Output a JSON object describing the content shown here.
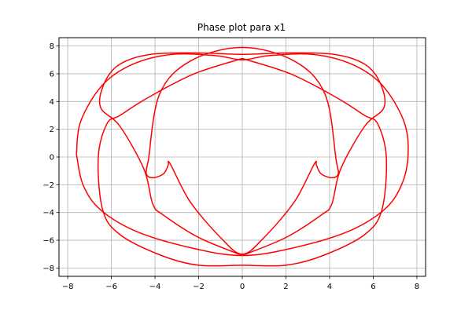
{
  "chart_data": {
    "type": "line",
    "title": "Phase plot para x1",
    "xlabel": "",
    "ylabel": "",
    "xlim": [
      -8.4,
      8.4
    ],
    "ylim": [
      -8.6,
      8.6
    ],
    "xticks": [
      -8,
      -6,
      -4,
      -2,
      0,
      2,
      4,
      6,
      8
    ],
    "yticks": [
      -8,
      -6,
      -4,
      -2,
      0,
      2,
      4,
      6,
      8
    ],
    "grid": true,
    "legend": "none",
    "color": "#ff0000",
    "series": [
      {
        "x": [
          0.0,
          2.0,
          3.6,
          4.1,
          4.5,
          5.6,
          6.5,
          6.3,
          5.6,
          4.2,
          2.0,
          0.0,
          -2.0,
          -4.2,
          -5.6,
          -6.3,
          -6.5,
          -5.6,
          -4.5,
          -4.1,
          -3.6,
          -2.0,
          0.0
        ],
        "y": [
          -7.1,
          -5.8,
          -4.2,
          -3.4,
          -0.9,
          2.2,
          3.6,
          5.4,
          6.7,
          7.4,
          7.5,
          7.4,
          7.5,
          7.4,
          6.7,
          5.4,
          3.6,
          2.2,
          -0.9,
          -3.4,
          -4.2,
          -5.8,
          -7.1
        ]
      },
      {
        "x": [
          0.0,
          2.2,
          4.3,
          5.6,
          6.2,
          6.6,
          6.4,
          5.6,
          3.7,
          2.0,
          0.0,
          -2.0,
          -3.7,
          -5.6,
          -6.4,
          -6.6,
          -6.2,
          -5.6,
          -4.3,
          -2.2,
          0.0
        ],
        "y": [
          7.1,
          6.0,
          4.3,
          3.0,
          2.4,
          0.0,
          -3.8,
          -5.6,
          -7.1,
          -7.8,
          -7.8,
          -7.8,
          -7.1,
          -5.6,
          -3.8,
          0.0,
          2.4,
          3.0,
          4.3,
          6.0,
          7.1
        ]
      },
      {
        "x": [
          -4.3,
          -4.4,
          -4.1,
          -3.6,
          -3.4,
          -3.3,
          -2.4,
          -1.0,
          0.0,
          1.0,
          2.4,
          3.3,
          3.4,
          3.6,
          4.1,
          4.4,
          4.3,
          3.8,
          2.4,
          0.0,
          -2.4,
          -3.8,
          -4.3
        ],
        "y": [
          -0.2,
          -1.2,
          -1.5,
          -1.2,
          -0.6,
          -0.5,
          -3.2,
          -5.8,
          -7.0,
          -5.8,
          -3.2,
          -0.5,
          -0.6,
          -1.2,
          -1.5,
          -1.2,
          -0.2,
          4.5,
          6.9,
          7.9,
          6.9,
          4.5,
          -0.2
        ]
      },
      {
        "x": [
          -7.6,
          -7.4,
          -6.4,
          -5.0,
          -3.2,
          -1.2,
          0.0,
          1.2,
          3.2,
          5.0,
          6.4,
          7.4,
          7.6,
          7.3,
          6.5,
          4.8,
          2.2,
          0.0,
          -2.2,
          -4.8,
          -6.5,
          -7.3,
          -7.6
        ],
        "y": [
          0.2,
          2.6,
          5.2,
          6.7,
          7.4,
          7.3,
          7.0,
          7.3,
          7.4,
          6.7,
          5.2,
          2.6,
          0.2,
          -2.0,
          -3.8,
          -5.4,
          -6.6,
          -7.1,
          -6.6,
          -5.4,
          -3.8,
          -2.0,
          0.2
        ]
      }
    ]
  }
}
